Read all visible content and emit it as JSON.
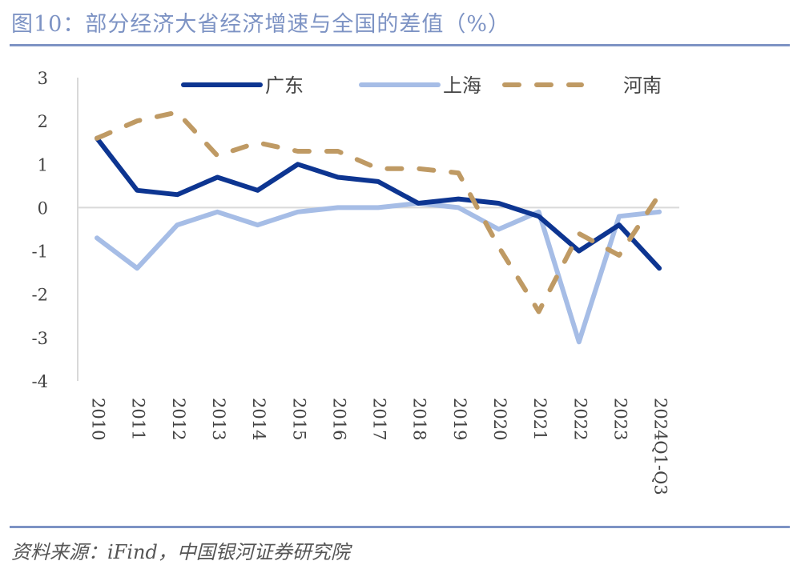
{
  "header": {
    "title": "图10：部分经济大省经济增速与全国的差值（%）"
  },
  "footer": {
    "source": "资料来源：iFind，中国银河证券研究院"
  },
  "colors": {
    "accent_rule": "#7d93c4",
    "guangdong": "#0d3591",
    "shanghai": "#a6bde6",
    "henan": "#bf9a64"
  },
  "chart_data": {
    "type": "line",
    "title": "部分经济大省经济增速与全国的差值（%）",
    "xlabel": "",
    "ylabel": "",
    "categories": [
      "2010",
      "2011",
      "2012",
      "2013",
      "2014",
      "2015",
      "2016",
      "2017",
      "2018",
      "2019",
      "2020",
      "2021",
      "2022",
      "2023",
      "2024Q1-Q3"
    ],
    "ylim": [
      -4,
      3
    ],
    "yticks": [
      "3",
      "2",
      "1",
      "0",
      "-1",
      "-2",
      "-3",
      "-4"
    ],
    "ytick_values": [
      3,
      2,
      1,
      0,
      -1,
      -2,
      -3,
      -4
    ],
    "grid": false,
    "zero_line": true,
    "legend_position": "top",
    "series": [
      {
        "name": "广东",
        "style": "solid",
        "color": "#0d3591",
        "values": [
          1.6,
          0.4,
          0.3,
          0.7,
          0.4,
          1.0,
          0.7,
          0.6,
          0.1,
          0.2,
          0.1,
          -0.2,
          -1.0,
          -0.4,
          -1.4
        ]
      },
      {
        "name": "上海",
        "style": "solid",
        "color": "#a6bde6",
        "values": [
          -0.7,
          -1.4,
          -0.4,
          -0.1,
          -0.4,
          -0.1,
          0.0,
          0.0,
          0.1,
          0.0,
          -0.5,
          -0.1,
          -3.1,
          -0.2,
          -0.1
        ]
      },
      {
        "name": "河南",
        "style": "dashed",
        "color": "#bf9a64",
        "values": [
          1.6,
          2.0,
          2.2,
          1.2,
          1.5,
          1.3,
          1.3,
          0.9,
          0.9,
          0.8,
          -0.9,
          -2.4,
          -0.6,
          -1.1,
          0.3
        ]
      }
    ]
  }
}
